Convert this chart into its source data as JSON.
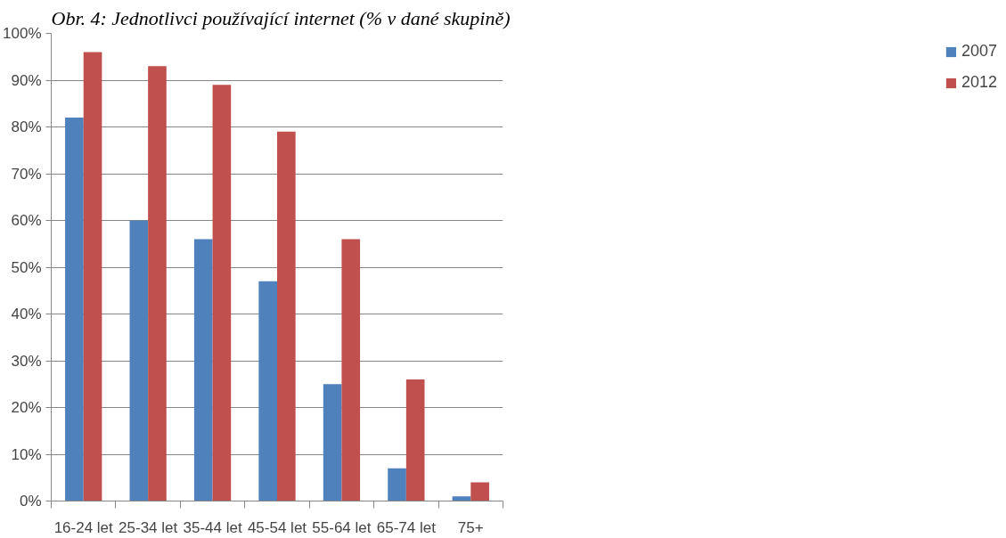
{
  "chart_data": {
    "type": "bar",
    "title": "Obr. 4: Jednotlivci používající internet (% v dané skupině)",
    "categories": [
      "16-24 let",
      "25-34 let",
      "35-44 let",
      "45-54 let",
      "55-64 let",
      "65-74 let",
      "75+"
    ],
    "series": [
      {
        "name": "2007",
        "color": "#4f81bd",
        "values": [
          82,
          60,
          56,
          47,
          25,
          7,
          1
        ]
      },
      {
        "name": "2012",
        "color": "#c0504d",
        "values": [
          96,
          93,
          89,
          79,
          56,
          26,
          4
        ]
      }
    ],
    "ylim": [
      0,
      100
    ],
    "yticks": [
      {
        "value": 0,
        "label": "0%"
      },
      {
        "value": 10,
        "label": "10%"
      },
      {
        "value": 20,
        "label": "20%"
      },
      {
        "value": 30,
        "label": "30%"
      },
      {
        "value": 40,
        "label": "40%"
      },
      {
        "value": 50,
        "label": "50%"
      },
      {
        "value": 60,
        "label": "60%"
      },
      {
        "value": 70,
        "label": "70%"
      },
      {
        "value": 80,
        "label": "80%"
      },
      {
        "value": 90,
        "label": "90%"
      },
      {
        "value": 100,
        "label": "100%"
      }
    ],
    "grid": "y",
    "legend": "right"
  }
}
